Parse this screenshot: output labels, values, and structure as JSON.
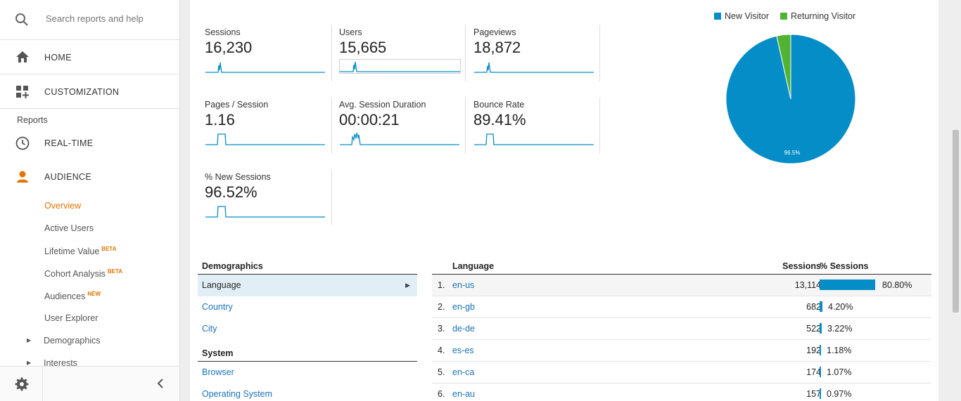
{
  "sidebar": {
    "search_placeholder": "Search reports and help",
    "home_label": "HOME",
    "customization_label": "CUSTOMIZATION",
    "reports_label": "Reports",
    "realtime_label": "REAL-TIME",
    "audience_label": "AUDIENCE",
    "audience_items": [
      {
        "label": "Overview",
        "badge": ""
      },
      {
        "label": "Active Users",
        "badge": ""
      },
      {
        "label": "Lifetime Value",
        "badge": "BETA"
      },
      {
        "label": "Cohort Analysis",
        "badge": "BETA"
      },
      {
        "label": "Audiences",
        "badge": "NEW"
      },
      {
        "label": "User Explorer",
        "badge": ""
      },
      {
        "label": "Demographics",
        "badge": ""
      },
      {
        "label": "Interests",
        "badge": ""
      }
    ],
    "accent_color": "#e37400"
  },
  "metrics": [
    {
      "label": "Sessions",
      "value": "16,230"
    },
    {
      "label": "Users",
      "value": "15,665"
    },
    {
      "label": "Pageviews",
      "value": "18,872"
    },
    {
      "label": "Pages / Session",
      "value": "1.16"
    },
    {
      "label": "Avg. Session Duration",
      "value": "00:00:21"
    },
    {
      "label": "Bounce Rate",
      "value": "89.41%"
    },
    {
      "label": "% New Sessions",
      "value": "96.52%"
    }
  ],
  "pie": {
    "legend": [
      {
        "name": "New Visitor",
        "color": "#058dc7"
      },
      {
        "name": "Returning Visitor",
        "color": "#50b432"
      }
    ],
    "slices": [
      {
        "name": "New Visitor",
        "value": 96.5
      },
      {
        "name": "Returning Visitor",
        "value": 3.5
      }
    ],
    "slice_label": "96.5%"
  },
  "demographics": {
    "title": "Demographics",
    "items": [
      "Language",
      "Country",
      "City"
    ],
    "system_title": "System",
    "system_items": [
      "Browser",
      "Operating System"
    ]
  },
  "table": {
    "col_language": "Language",
    "col_sessions": "Sessions",
    "col_pct": "% Sessions",
    "rows": [
      {
        "n": "1.",
        "lang": "en-us",
        "sessions": "13,114",
        "pct": "80.80%",
        "frac": 0.808
      },
      {
        "n": "2.",
        "lang": "en-gb",
        "sessions": "682",
        "pct": "4.20%",
        "frac": 0.042
      },
      {
        "n": "3.",
        "lang": "de-de",
        "sessions": "522",
        "pct": "3.22%",
        "frac": 0.0322
      },
      {
        "n": "4.",
        "lang": "es-es",
        "sessions": "192",
        "pct": "1.18%",
        "frac": 0.0118
      },
      {
        "n": "5.",
        "lang": "en-ca",
        "sessions": "174",
        "pct": "1.07%",
        "frac": 0.0107
      },
      {
        "n": "6.",
        "lang": "en-au",
        "sessions": "157",
        "pct": "0.97%",
        "frac": 0.0097
      }
    ]
  }
}
